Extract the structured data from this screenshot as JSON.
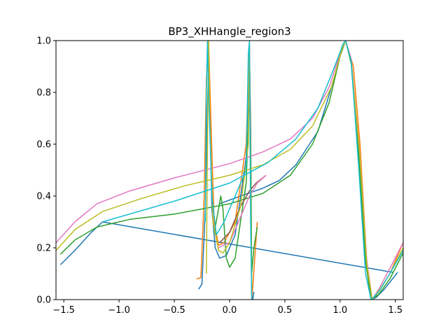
{
  "chart_data": {
    "type": "line",
    "title": "BP3_XHHangle_region3",
    "xlabel": "",
    "ylabel": "",
    "xlim": [
      -1.5708,
      1.5708
    ],
    "ylim": [
      0.0,
      1.0
    ],
    "xticks": [
      -1.5,
      -1.0,
      -0.5,
      0.0,
      0.5,
      1.0,
      1.5
    ],
    "xtick_labels": [
      "−1.5",
      "−1.0",
      "−0.5",
      "0.0",
      "0.5",
      "1.0",
      "1.5"
    ],
    "yticks": [
      0.0,
      0.2,
      0.4,
      0.6,
      0.8,
      1.0
    ],
    "ytick_labels": [
      "0.0",
      "0.2",
      "0.4",
      "0.6",
      "0.8",
      "1.0"
    ],
    "grid": false,
    "legend": "none",
    "series": [
      {
        "color": "#1f77b4",
        "points": [
          [
            -1.53,
            0.135
          ],
          [
            -1.4,
            0.19
          ],
          [
            -1.25,
            0.26
          ],
          [
            -1.15,
            0.3
          ],
          [
            1.48,
            0.105
          ]
        ]
      },
      {
        "color": "#1f77b4",
        "points": [
          [
            -0.28,
            0.04
          ],
          [
            -0.25,
            0.06
          ],
          [
            -0.22,
            0.35
          ],
          [
            -0.2,
            0.75
          ],
          [
            -0.19,
            0.9
          ],
          [
            -0.18,
            0.75
          ],
          [
            -0.16,
            0.35
          ],
          [
            -0.13,
            0.2
          ],
          [
            -0.09,
            0.16
          ],
          [
            -0.03,
            0.17
          ],
          [
            0.05,
            0.25
          ],
          [
            0.15,
            0.55
          ],
          [
            0.18,
            0.95
          ],
          [
            0.19,
            0.7
          ],
          [
            0.2,
            0.02
          ],
          [
            0.21,
            0.0
          ],
          [
            0.22,
            0.03
          ]
        ]
      },
      {
        "color": "#1f77b4",
        "points": [
          [
            -0.09,
            0.37
          ],
          [
            0.1,
            0.4
          ],
          [
            0.3,
            0.43
          ],
          [
            0.45,
            0.46
          ],
          [
            0.6,
            0.52
          ],
          [
            0.8,
            0.65
          ],
          [
            0.95,
            0.86
          ],
          [
            1.02,
            0.98
          ],
          [
            1.05,
            1.0
          ],
          [
            1.1,
            0.92
          ],
          [
            1.18,
            0.55
          ],
          [
            1.23,
            0.2
          ],
          [
            1.27,
            0.03
          ],
          [
            1.29,
            0.0
          ],
          [
            1.33,
            0.01
          ],
          [
            1.4,
            0.04
          ],
          [
            1.52,
            0.105
          ]
        ]
      },
      {
        "color": "#ff7f0e",
        "points": [
          [
            -0.3,
            0.08
          ],
          [
            -0.26,
            0.085
          ],
          [
            -0.23,
            0.4
          ],
          [
            -0.21,
            0.85
          ],
          [
            -0.19,
            1.0
          ],
          [
            -0.17,
            0.7
          ],
          [
            -0.14,
            0.3
          ],
          [
            -0.1,
            0.21
          ],
          [
            -0.05,
            0.22
          ],
          [
            0.05,
            0.3
          ],
          [
            0.15,
            0.6
          ],
          [
            0.18,
            1.0
          ],
          [
            0.19,
            0.6
          ],
          [
            0.2,
            0.0
          ],
          [
            0.21,
            0.05
          ],
          [
            0.25,
            0.3
          ]
        ]
      },
      {
        "color": "#ff7f0e",
        "points": [
          [
            1.05,
            1.0
          ],
          [
            1.12,
            0.9
          ],
          [
            1.18,
            0.6
          ],
          [
            1.24,
            0.15
          ],
          [
            1.29,
            0.0
          ],
          [
            1.35,
            0.03
          ],
          [
            1.45,
            0.1
          ],
          [
            1.57,
            0.22
          ]
        ]
      },
      {
        "color": "#2ca02c",
        "points": [
          [
            -1.53,
            0.175
          ],
          [
            -1.4,
            0.23
          ],
          [
            -1.2,
            0.28
          ],
          [
            -0.9,
            0.31
          ],
          [
            -0.5,
            0.33
          ],
          [
            0.0,
            0.37
          ],
          [
            0.3,
            0.41
          ],
          [
            0.55,
            0.48
          ],
          [
            0.75,
            0.6
          ],
          [
            0.9,
            0.76
          ],
          [
            1.0,
            0.94
          ],
          [
            1.05,
            1.0
          ],
          [
            1.1,
            0.91
          ],
          [
            1.17,
            0.55
          ],
          [
            1.23,
            0.15
          ],
          [
            1.28,
            0.0
          ],
          [
            1.35,
            0.02
          ],
          [
            1.45,
            0.08
          ],
          [
            1.57,
            0.18
          ]
        ]
      },
      {
        "color": "#2ca02c",
        "points": [
          [
            -0.14,
            0.255
          ],
          [
            -0.1,
            0.35
          ],
          [
            -0.08,
            0.4
          ],
          [
            -0.06,
            0.35
          ],
          [
            -0.03,
            0.16
          ],
          [
            0.0,
            0.125
          ],
          [
            0.05,
            0.16
          ],
          [
            0.15,
            0.45
          ],
          [
            0.18,
            0.8
          ],
          [
            0.19,
            0.6
          ],
          [
            0.2,
            0.1
          ],
          [
            0.22,
            0.2
          ],
          [
            0.25,
            0.28
          ]
        ]
      },
      {
        "color": "#8c564b",
        "points": [
          [
            -0.09,
            0.22
          ],
          [
            0.0,
            0.26
          ],
          [
            0.1,
            0.36
          ],
          [
            0.18,
            0.42
          ],
          [
            0.24,
            0.45
          ],
          [
            0.33,
            0.48
          ]
        ]
      },
      {
        "color": "#e377c2",
        "points": [
          [
            -1.57,
            0.22
          ],
          [
            -1.4,
            0.3
          ],
          [
            -1.2,
            0.37
          ],
          [
            -0.9,
            0.42
          ],
          [
            -0.5,
            0.47
          ],
          [
            0.0,
            0.525
          ],
          [
            0.3,
            0.57
          ],
          [
            0.55,
            0.62
          ],
          [
            0.75,
            0.7
          ],
          [
            0.9,
            0.82
          ],
          [
            1.0,
            0.95
          ],
          [
            1.05,
            1.0
          ],
          [
            1.1,
            0.93
          ],
          [
            1.18,
            0.55
          ],
          [
            1.24,
            0.15
          ],
          [
            1.29,
            0.0
          ],
          [
            1.35,
            0.04
          ],
          [
            1.45,
            0.12
          ],
          [
            1.57,
            0.22
          ]
        ]
      },
      {
        "color": "#e377c2",
        "points": [
          [
            -0.1,
            0.2
          ],
          [
            -0.06,
            0.21
          ],
          [
            0.0,
            0.22
          ],
          [
            0.1,
            0.32
          ],
          [
            0.18,
            0.4
          ],
          [
            0.25,
            0.45
          ],
          [
            0.33,
            0.48
          ]
        ]
      },
      {
        "color": "#bcbd22",
        "points": [
          [
            -1.57,
            0.19
          ],
          [
            -1.4,
            0.27
          ],
          [
            -1.15,
            0.34
          ],
          [
            -0.8,
            0.39
          ],
          [
            -0.4,
            0.44
          ],
          [
            0.0,
            0.48
          ],
          [
            0.3,
            0.52
          ],
          [
            0.55,
            0.58
          ],
          [
            0.75,
            0.67
          ],
          [
            0.92,
            0.82
          ],
          [
            1.02,
            0.97
          ],
          [
            1.05,
            1.0
          ],
          [
            1.1,
            0.92
          ],
          [
            1.18,
            0.55
          ],
          [
            1.24,
            0.14
          ],
          [
            1.29,
            0.0
          ],
          [
            1.36,
            0.04
          ],
          [
            1.45,
            0.1
          ],
          [
            1.57,
            0.2
          ]
        ]
      },
      {
        "color": "#bcbd22",
        "points": [
          [
            -0.21,
            0.1
          ],
          [
            -0.2,
            0.6
          ],
          [
            -0.19,
            1.0
          ],
          [
            -0.18,
            0.7
          ],
          [
            -0.15,
            0.3
          ],
          [
            -0.1,
            0.19
          ],
          [
            -0.06,
            0.18
          ],
          [
            0.0,
            0.22
          ],
          [
            0.1,
            0.36
          ],
          [
            0.17,
            0.6
          ],
          [
            0.18,
            0.98
          ],
          [
            0.19,
            0.4
          ],
          [
            0.2,
            0.05
          ]
        ]
      },
      {
        "color": "#17becf",
        "points": [
          [
            -1.15,
            0.3
          ],
          [
            -0.5,
            0.38
          ],
          [
            0.0,
            0.45
          ],
          [
            0.35,
            0.53
          ],
          [
            0.6,
            0.62
          ],
          [
            0.8,
            0.74
          ],
          [
            0.95,
            0.9
          ],
          [
            1.03,
            0.99
          ],
          [
            1.05,
            1.0
          ],
          [
            1.1,
            0.92
          ],
          [
            1.17,
            0.5
          ],
          [
            1.23,
            0.1
          ],
          [
            1.28,
            0.0
          ],
          [
            1.35,
            0.03
          ],
          [
            1.45,
            0.1
          ],
          [
            1.57,
            0.19
          ]
        ]
      },
      {
        "color": "#17becf",
        "points": [
          [
            -0.22,
            0.3
          ],
          [
            -0.21,
            0.8
          ],
          [
            -0.2,
            1.0
          ],
          [
            -0.19,
            0.8
          ],
          [
            -0.16,
            0.4
          ],
          [
            -0.12,
            0.25
          ],
          [
            -0.05,
            0.3
          ],
          [
            0.05,
            0.4
          ],
          [
            0.15,
            0.5
          ],
          [
            0.17,
            0.95
          ],
          [
            0.18,
            1.0
          ],
          [
            0.19,
            0.3
          ],
          [
            0.2,
            0.0
          ]
        ]
      }
    ]
  }
}
